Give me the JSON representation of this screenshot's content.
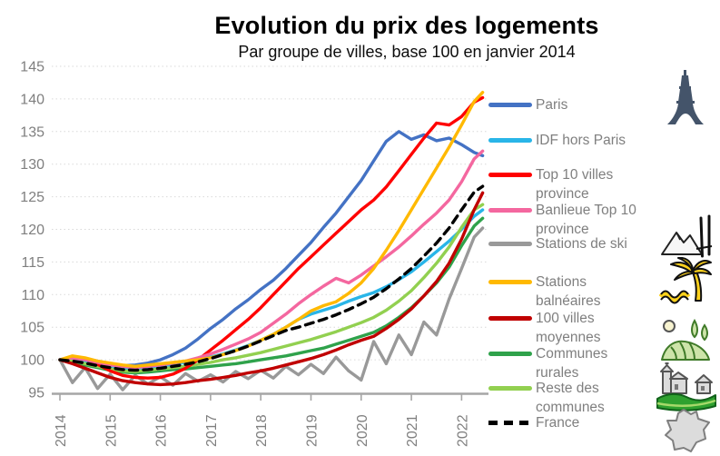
{
  "chart_data": {
    "type": "line",
    "title": "Evolution du prix des logements",
    "subtitle": "Par groupe de villes, base 100 en janvier 2014",
    "xlabel": "",
    "ylabel": "",
    "grid": true,
    "legend_position": "right",
    "ylim": [
      95,
      145
    ],
    "y_ticks": [
      95,
      100,
      105,
      110,
      115,
      120,
      125,
      130,
      135,
      140,
      145
    ],
    "x_ticks": [
      2014,
      2015,
      2016,
      2017,
      2018,
      2019,
      2020,
      2021,
      2022
    ],
    "x": [
      2014.0,
      2014.25,
      2014.5,
      2014.75,
      2015.0,
      2015.25,
      2015.5,
      2015.75,
      2016.0,
      2016.25,
      2016.5,
      2016.75,
      2017.0,
      2017.25,
      2017.5,
      2017.75,
      2018.0,
      2018.25,
      2018.5,
      2018.75,
      2019.0,
      2019.25,
      2019.5,
      2019.75,
      2020.0,
      2020.25,
      2020.5,
      2020.75,
      2021.0,
      2021.25,
      2021.5,
      2021.75,
      2022.0,
      2022.25,
      2022.42
    ],
    "series": [
      {
        "id": "stations-de-ski",
        "name": "Stations de ski",
        "color": "#999999",
        "dash": false,
        "values": [
          100,
          96.5,
          98.8,
          95.6,
          97.8,
          95.4,
          97.6,
          96.3,
          97.4,
          96.1,
          97.9,
          96.7,
          97.7,
          96.6,
          98.2,
          97.1,
          98.4,
          97.2,
          99,
          97.7,
          99.3,
          97.9,
          100.4,
          98.3,
          96.9,
          102.8,
          99.4,
          103.8,
          100.8,
          105.8,
          103.8,
          109.3,
          114,
          118.8,
          120.2
        ]
      },
      {
        "id": "idf-hors-paris",
        "name": "IDF hors Paris",
        "color": "#29B5E8",
        "dash": false,
        "values": [
          100,
          100,
          99.7,
          99.3,
          99,
          98.7,
          98.5,
          98.7,
          99,
          99.3,
          99.6,
          100,
          100.4,
          100.9,
          101.5,
          102.2,
          103,
          103.9,
          105,
          106.2,
          107,
          107.6,
          108.2,
          109,
          109.7,
          110.3,
          111.2,
          112.3,
          113.5,
          115,
          116.6,
          118.2,
          120,
          122,
          123
        ]
      },
      {
        "id": "communes-rurales",
        "name": "Communes rurales",
        "color": "#2FA24B",
        "dash": false,
        "values": [
          100,
          99.6,
          99.2,
          98.8,
          98.4,
          98.1,
          98,
          98.1,
          98.3,
          98.5,
          98.6,
          98.8,
          99,
          99.2,
          99.4,
          99.7,
          100,
          100.3,
          100.6,
          101,
          101.4,
          101.8,
          102.4,
          103,
          103.6,
          104.2,
          105.2,
          106.5,
          108,
          109.8,
          111.8,
          114.2,
          117.5,
          120.5,
          121.7
        ]
      },
      {
        "id": "reste-des-communes",
        "name": "Reste des communes",
        "color": "#92D050",
        "dash": false,
        "values": [
          100,
          99.8,
          99.4,
          99,
          98.6,
          98.3,
          98.2,
          98.4,
          98.6,
          98.8,
          99,
          99.3,
          99.6,
          100,
          100.3,
          100.7,
          101.1,
          101.6,
          102.1,
          102.6,
          103.1,
          103.7,
          104.3,
          105,
          105.7,
          106.5,
          107.6,
          109,
          110.6,
          112.6,
          114.8,
          117.3,
          120.3,
          123,
          123.8
        ]
      },
      {
        "id": "villes-moyennes",
        "name": "100 villes moyennes",
        "color": "#C00000",
        "dash": false,
        "values": [
          100,
          99.4,
          98.7,
          98,
          97.3,
          96.8,
          96.5,
          96.3,
          96.2,
          96.3,
          96.5,
          96.8,
          97,
          97.3,
          97.6,
          98,
          98.3,
          98.7,
          99.2,
          99.7,
          100.2,
          100.8,
          101.5,
          102.3,
          103,
          103.6,
          104.8,
          106.2,
          107.8,
          109.8,
          112,
          114.8,
          118.5,
          123,
          125.6
        ]
      },
      {
        "id": "paris",
        "name": "Paris",
        "color": "#4472C4",
        "dash": false,
        "values": [
          100,
          100.4,
          100.2,
          99.8,
          99.4,
          99.1,
          99.2,
          99.5,
          100,
          100.8,
          101.8,
          103.2,
          104.8,
          106.2,
          107.8,
          109.2,
          110.8,
          112.2,
          114,
          116,
          118,
          120.3,
          122.5,
          125,
          127.5,
          130.5,
          133.5,
          135,
          133.8,
          134.5,
          133.6,
          134,
          133,
          131.8,
          131.3
        ]
      },
      {
        "id": "top-10-villes-province",
        "name": "Top 10 villes province",
        "color": "#FF0000",
        "dash": false,
        "values": [
          100,
          100.5,
          100.2,
          99.3,
          98.3,
          97.6,
          97.3,
          97.2,
          97.3,
          97.8,
          98.7,
          100,
          101.5,
          103,
          104.6,
          106.2,
          108,
          110,
          112,
          114,
          115.8,
          117.6,
          119.4,
          121.2,
          123,
          124.5,
          126.5,
          129,
          131.5,
          134,
          136.3,
          136,
          137.3,
          139.5,
          140.2
        ]
      },
      {
        "id": "banlieue-top-10-province",
        "name": "Banlieue Top 10 province",
        "color": "#F4679F",
        "dash": false,
        "values": [
          100,
          100.3,
          100,
          99.6,
          99.2,
          99,
          98.8,
          99,
          99.2,
          99.5,
          99.8,
          100.3,
          100.9,
          101.6,
          102.4,
          103.2,
          104.2,
          105.6,
          107,
          108.6,
          110,
          111.3,
          112.5,
          111.8,
          113,
          114.4,
          115.8,
          117.3,
          119,
          120.8,
          122.5,
          124.5,
          127.3,
          130.8,
          132
        ]
      },
      {
        "id": "stations-balneaires",
        "name": "Stations balnéaires",
        "color": "#FFB900",
        "dash": false,
        "values": [
          100,
          100.6,
          100.3,
          99.8,
          99.5,
          99.2,
          99,
          99.2,
          99.4,
          99.6,
          99.8,
          100,
          100.3,
          100.8,
          101.4,
          102.1,
          103,
          103.9,
          105,
          106.2,
          107.5,
          108.3,
          108.9,
          110.2,
          111.8,
          114,
          116.8,
          119.8,
          123,
          126.2,
          129.4,
          132.6,
          136,
          139.6,
          141
        ]
      },
      {
        "id": "france",
        "name": "France",
        "color": "#000000",
        "dash": true,
        "values": [
          100,
          99.8,
          99.5,
          99.1,
          98.8,
          98.5,
          98.4,
          98.5,
          98.7,
          99,
          99.3,
          99.7,
          100.2,
          100.8,
          101.4,
          102.1,
          102.9,
          103.7,
          104.5,
          105,
          105.6,
          106.2,
          106.9,
          107.7,
          108.6,
          109.6,
          110.9,
          112.4,
          114,
          115.9,
          117.9,
          120.2,
          123,
          125.7,
          126.6
        ]
      }
    ]
  },
  "legend": {
    "items": [
      {
        "label": "Paris",
        "color": "#4472C4",
        "dash": false
      },
      {
        "label": "IDF hors Paris",
        "color": "#29B5E8",
        "dash": false
      },
      {
        "label": "Top 10 villes province",
        "color": "#FF0000",
        "dash": false
      },
      {
        "label": "Banlieue Top 10 province",
        "color": "#F4679F",
        "dash": false
      },
      {
        "label": "Stations de ski",
        "color": "#999999",
        "dash": false
      },
      {
        "label": "Stations balnéaires",
        "color": "#FFB900",
        "dash": false
      },
      {
        "label": "100 villes moyennes",
        "color": "#C00000",
        "dash": false
      },
      {
        "label": "Communes rurales",
        "color": "#2FA24B",
        "dash": false
      },
      {
        "label": "Reste des communes",
        "color": "#92D050",
        "dash": false
      },
      {
        "label": "France",
        "color": "#000000",
        "dash": true
      }
    ]
  },
  "icons": [
    {
      "name": "eiffel-tower-icon"
    },
    {
      "name": "ski-mountain-icon"
    },
    {
      "name": "palm-beach-icon"
    },
    {
      "name": "countryside-icon"
    },
    {
      "name": "village-icon"
    },
    {
      "name": "france-map-icon"
    }
  ],
  "colors": {
    "background": "#FFFFFF",
    "axis": "#A6A6A6",
    "grid": "#D9D9D9",
    "tick_label": "#7F7F7F",
    "legend_text": "#7F7F7F",
    "title_text": "#000000"
  }
}
